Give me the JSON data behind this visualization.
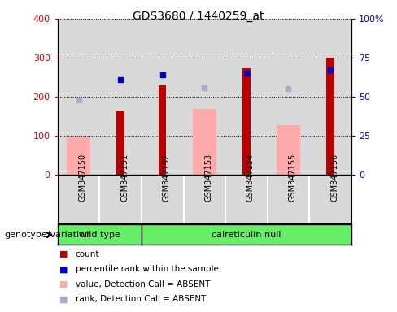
{
  "title": "GDS3680 / 1440259_at",
  "samples": [
    "GSM347150",
    "GSM347151",
    "GSM347152",
    "GSM347153",
    "GSM347154",
    "GSM347155",
    "GSM347156"
  ],
  "red_bars": [
    null,
    165,
    230,
    null,
    272,
    null,
    300
  ],
  "pink_bars": [
    95,
    null,
    null,
    168,
    null,
    128,
    null
  ],
  "dark_blue_squares": [
    null,
    61,
    64,
    null,
    65,
    null,
    67
  ],
  "light_blue_squares": [
    48,
    null,
    null,
    56,
    null,
    55,
    null
  ],
  "ylim_left": [
    0,
    400
  ],
  "ylim_right": [
    0,
    100
  ],
  "yticks_left": [
    0,
    100,
    200,
    300,
    400
  ],
  "yticks_right": [
    0,
    25,
    50,
    75,
    100
  ],
  "ytick_labels_right": [
    "0",
    "25",
    "50",
    "75",
    "100%"
  ],
  "left_tick_color": "#cc0000",
  "right_tick_color": "#0000cc",
  "red_color": "#bb0000",
  "pink_color": "#ffaaaa",
  "dark_blue_color": "#0000cc",
  "light_blue_color": "#aaaacc",
  "bg_color": "#ffffff",
  "col_bg": "#d8d8d8",
  "wild_type_label": "wild type",
  "calreticulin_label": "calreticulin null",
  "genotype_label": "genotype/variation",
  "green_color": "#66ee66",
  "legend_items": [
    {
      "label": "count",
      "color": "#bb0000"
    },
    {
      "label": "percentile rank within the sample",
      "color": "#0000cc"
    },
    {
      "label": "value, Detection Call = ABSENT",
      "color": "#ffaaaa"
    },
    {
      "label": "rank, Detection Call = ABSENT",
      "color": "#aaaacc"
    }
  ]
}
